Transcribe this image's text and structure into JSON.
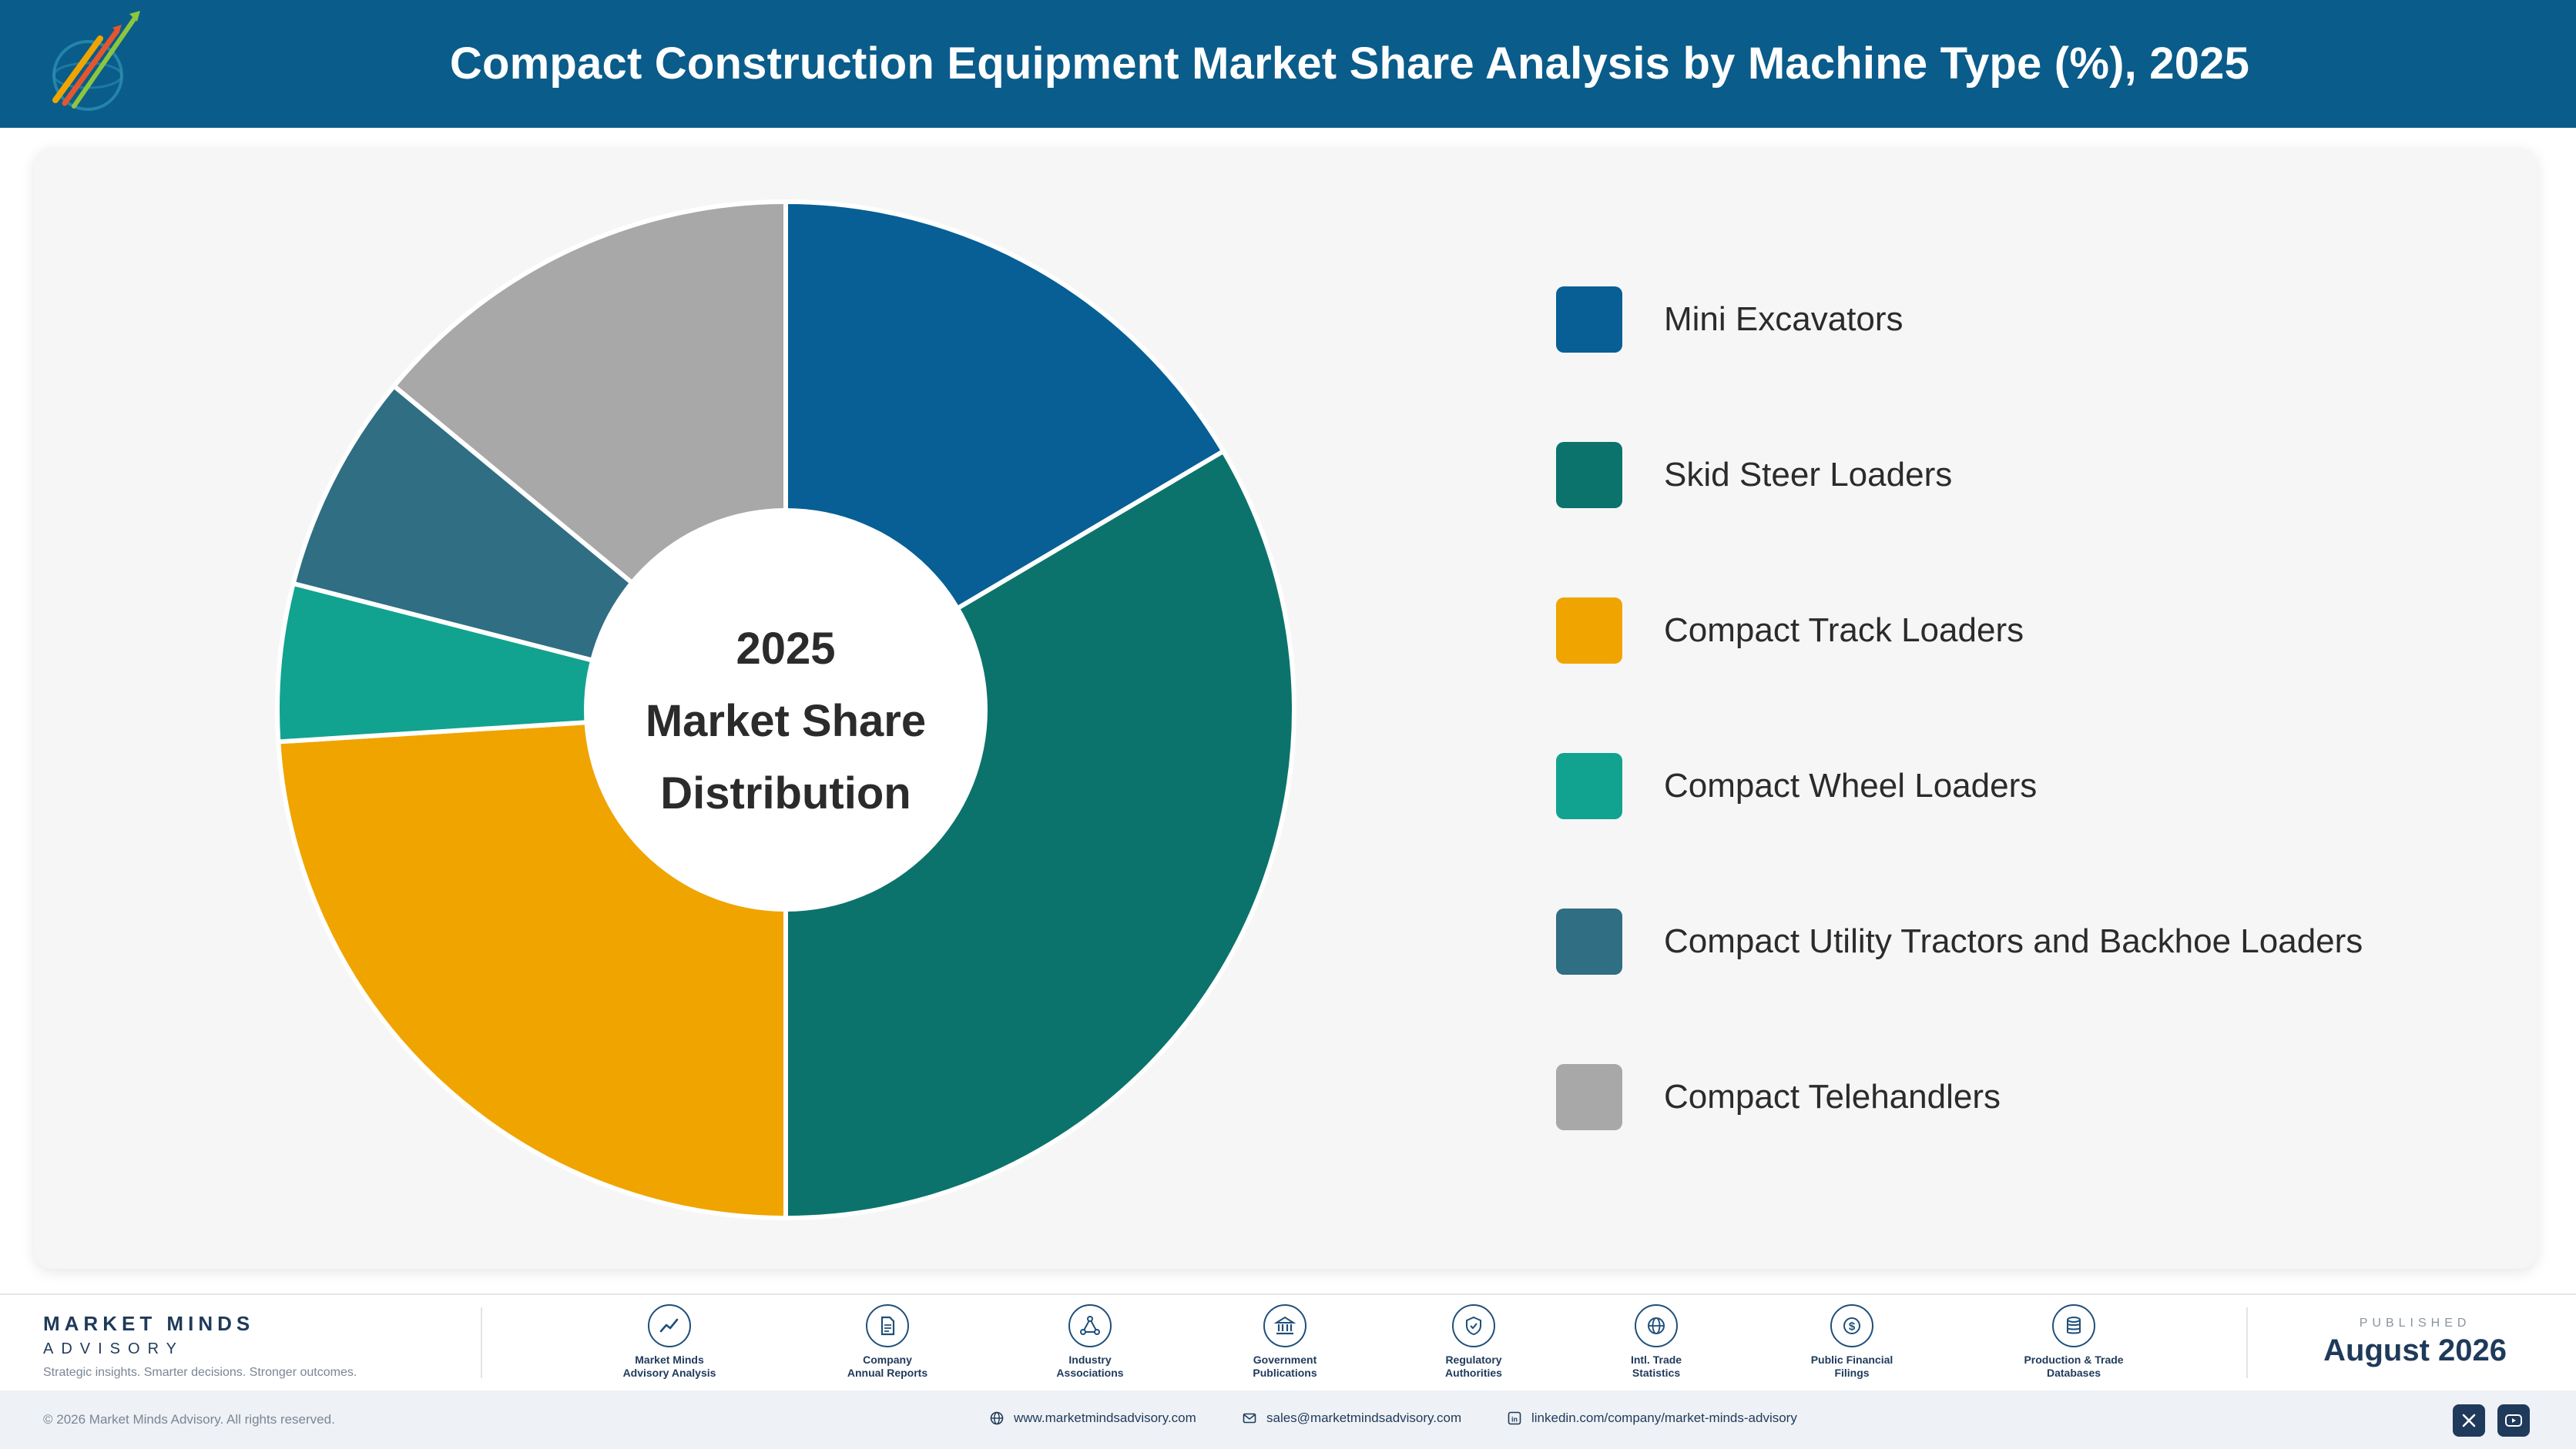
{
  "header": {
    "title": "Compact Construction Equipment Market Share Analysis by Machine Type (%), 2025"
  },
  "chart_data": {
    "type": "pie",
    "style": "donut",
    "center_text": [
      "2025",
      "Market Share",
      "Distribution"
    ],
    "categories": [
      "Mini Excavators",
      "Skid Steer Loaders",
      "Compact Track Loaders",
      "Compact Wheel Loaders",
      "Compact Utility Tractors and Backhoe Loaders",
      "Compact Telehandlers"
    ],
    "values": [
      16.5,
      33.5,
      24.0,
      5.0,
      7.0,
      14.0
    ],
    "colors": [
      "#075f95",
      "#0b736c",
      "#f0a400",
      "#11a390",
      "#2f6e83",
      "#a8a8a8"
    ],
    "legend_position": "right"
  },
  "footer": {
    "brand_name": "MARKET MINDS",
    "brand_sub": "ADVISORY",
    "brand_tagline": "Strategic insights. Smarter decisions. Stronger outcomes.",
    "sources": [
      {
        "line1": "Market Minds",
        "line2": "Advisory Analysis",
        "icon": "chart-line-icon"
      },
      {
        "line1": "Company",
        "line2": "Annual Reports",
        "icon": "document-icon"
      },
      {
        "line1": "Industry",
        "line2": "Associations",
        "icon": "network-icon"
      },
      {
        "line1": "Government",
        "line2": "Publications",
        "icon": "government-building-icon"
      },
      {
        "line1": "Regulatory",
        "line2": "Authorities",
        "icon": "shield-check-icon"
      },
      {
        "line1": "Intl. Trade",
        "line2": "Statistics",
        "icon": "globe-icon"
      },
      {
        "line1": "Public Financial",
        "line2": "Filings",
        "icon": "dollar-icon"
      },
      {
        "line1": "Production & Trade",
        "line2": "Databases",
        "icon": "database-icon"
      }
    ],
    "published_label": "PUBLISHED",
    "published_date": "August 2026",
    "copyright": "© 2026 Market Minds Advisory. All rights reserved.",
    "website": "www.marketmindsadvisory.com",
    "email": "sales@marketmindsadvisory.com",
    "linkedin": "linkedin.com/company/market-minds-advisory"
  }
}
